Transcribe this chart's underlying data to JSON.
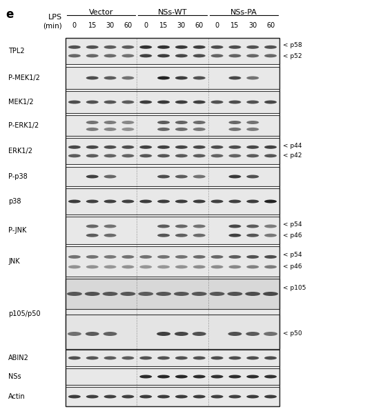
{
  "figure_label": "e",
  "lps_label": "LPS",
  "min_label": "(min)",
  "groups": [
    "Vector",
    "NSs-WT",
    "NSs-PA"
  ],
  "timepoints": [
    "0",
    "15",
    "30",
    "60"
  ],
  "row_labels": [
    "TPL2",
    "P-MEK1/2",
    "MEK1/2",
    "P-ERK1/2",
    "ERK1/2",
    "P-p38",
    "p38",
    "P-JNK",
    "JNK",
    "p105/p50",
    "ABIN2",
    "NSs",
    "Actin"
  ],
  "right_annotations": {
    "TPL2": [
      "< p58",
      "< p52"
    ],
    "ERK1/2": [
      "< p44",
      "< p42"
    ],
    "P-JNK": [
      "< p54",
      "< p46"
    ],
    "JNK": [
      "< p54",
      "< p46"
    ],
    "p105/p50": [
      "< p105",
      "< p50"
    ]
  },
  "bg_color": "#f0f0f0",
  "band_color_dark": "#1a1a1a",
  "band_color_mid": "#555555",
  "band_color_light": "#999999",
  "border_color": "#000000",
  "text_color": "#000000"
}
